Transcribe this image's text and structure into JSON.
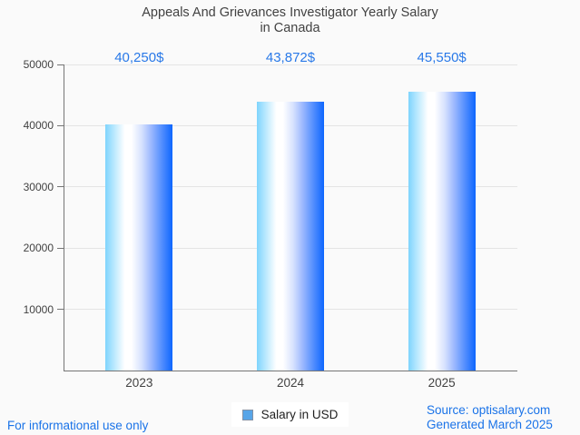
{
  "title": {
    "line1": "Appeals And Grievances Investigator Yearly Salary",
    "line2": "in Canada"
  },
  "chart_data": {
    "type": "bar",
    "title": "Appeals And Grievances Investigator Yearly Salary in Canada",
    "categories": [
      "2023",
      "2024",
      "2025"
    ],
    "series": [
      {
        "name": "Salary in USD",
        "values": [
          40250,
          43872,
          45550
        ]
      }
    ],
    "value_labels": [
      "40,250$",
      "43,872$",
      "45,550$"
    ],
    "xlabel": "",
    "ylabel": "",
    "ylim": [
      0,
      50000
    ],
    "yticks": [
      10000,
      20000,
      30000,
      40000,
      50000
    ],
    "grid": true,
    "legend_position": "bottom-center",
    "bar_gradient": [
      "#7ed4fd 0%",
      "#b9e8fe 13%",
      "#ffffff 29%",
      "#ffffff 39%",
      "#d7e2fe 54%",
      "#9db9fe 68%",
      "#4f8cfe 85%",
      "#0d66fe 100%"
    ]
  },
  "legend": {
    "label": "Salary in USD"
  },
  "footer": {
    "left": "For informational use only",
    "source": "Source: optisalary.com",
    "generated": "Generated March 2025"
  },
  "colors": {
    "background": "#fafafa",
    "title_text": "#424242",
    "axis_text": "#424242",
    "gridline": "#e4e4e4",
    "axis_line": "#757575",
    "value_label": "#2979e8",
    "footer_link": "#1a73e8",
    "legend_marker_fill": "#57a5e8",
    "legend_marker_border": "#8492a6"
  }
}
